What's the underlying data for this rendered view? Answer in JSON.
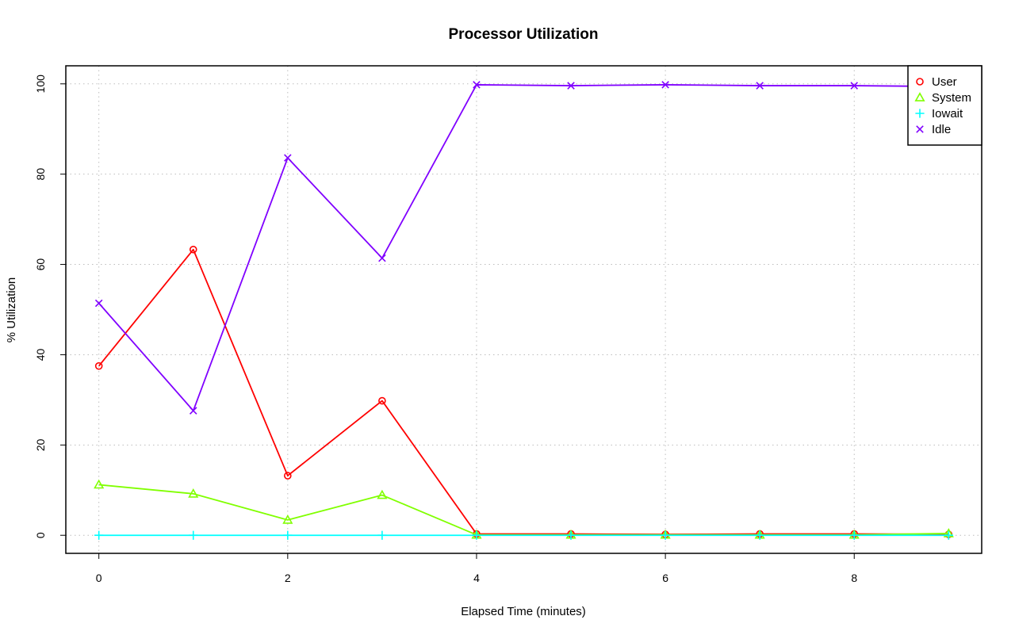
{
  "chart_data": {
    "type": "line",
    "title": "Processor Utilization",
    "xlabel": "Elapsed Time (minutes)",
    "ylabel": "% Utilization",
    "x": [
      0,
      1,
      2,
      3,
      4,
      5,
      6,
      7,
      8,
      9
    ],
    "xlim": [
      -0.35,
      9.35
    ],
    "ylim": [
      -4,
      104
    ],
    "xticks": [
      "0",
      "2",
      "4",
      "6",
      "8"
    ],
    "yticks": [
      "0",
      "20",
      "40",
      "60",
      "80",
      "100"
    ],
    "grid": true,
    "grid_style": "dotted",
    "legend_position": "top-right",
    "series": [
      {
        "name": "User",
        "color": "#ff0000",
        "marker": "circle",
        "values": [
          37.5,
          63.3,
          13.2,
          29.8,
          0.3,
          0.3,
          0.2,
          0.3,
          0.3,
          0.2
        ]
      },
      {
        "name": "System",
        "color": "#80ff00",
        "marker": "triangle",
        "values": [
          11.2,
          9.2,
          3.4,
          8.9,
          0.1,
          0.1,
          0.1,
          0.1,
          0.1,
          0.4
        ]
      },
      {
        "name": "Iowait",
        "color": "#00ffff",
        "marker": "plus",
        "values": [
          0,
          0,
          0,
          0,
          0,
          0,
          0,
          0,
          0,
          0
        ]
      },
      {
        "name": "Idle",
        "color": "#8000ff",
        "marker": "x",
        "values": [
          51.4,
          27.6,
          83.6,
          61.4,
          99.8,
          99.6,
          99.8,
          99.6,
          99.6,
          99.4
        ]
      }
    ]
  }
}
